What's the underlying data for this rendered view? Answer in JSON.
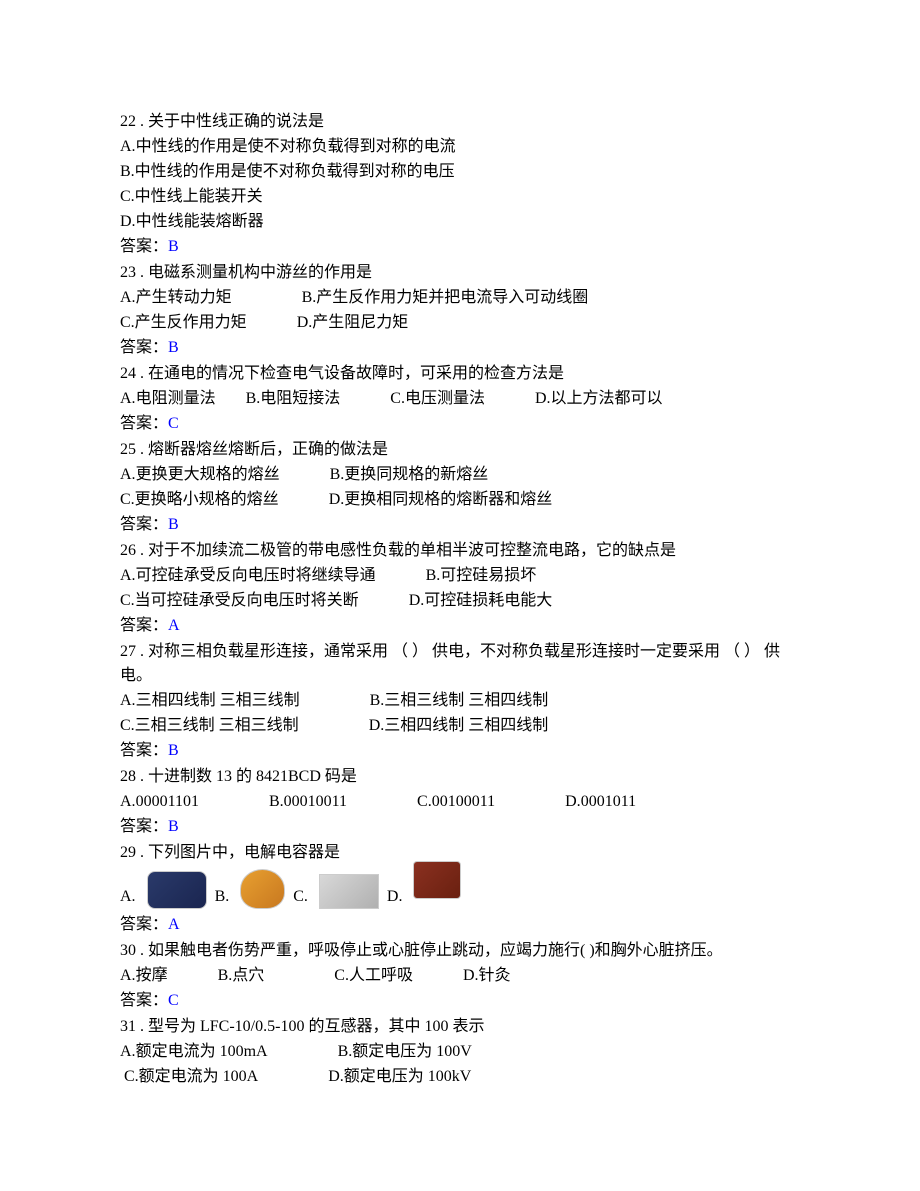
{
  "questions": [
    {
      "number": "22",
      "text": "关于中性线正确的说法是",
      "options": {
        "A": "中性线的作用是使不对称负载得到对称的电流",
        "B": "中性线的作用是使不对称负载得到对称的电压",
        "C": "中性线上能装开关",
        "D": "中性线能装熔断器"
      },
      "answer_label": "答案：",
      "answer": "B"
    },
    {
      "number": "23",
      "text": "电磁系测量机构中游丝的作用是",
      "options": {
        "A": "产生转动力矩",
        "B": "产生反作用力矩并把电流导入可动线圈",
        "C": "产生反作用力矩",
        "D": "产生阻尼力矩"
      },
      "answer_label": "答案：",
      "answer": "B"
    },
    {
      "number": "24",
      "text": "在通电的情况下检查电气设备故障时，可采用的检查方法是",
      "options": {
        "A": "电阻测量法",
        "B": "电阻短接法",
        "C": "电压测量法",
        "D": "以上方法都可以"
      },
      "answer_label": "答案：",
      "answer": "C"
    },
    {
      "number": "25",
      "text": "熔断器熔丝熔断后，正确的做法是",
      "options": {
        "A": "更换更大规格的熔丝",
        "B": "更换同规格的新熔丝",
        "C": "更换略小规格的熔丝",
        "D": "更换相同规格的熔断器和熔丝"
      },
      "answer_label": "答案：",
      "answer": "B"
    },
    {
      "number": "26",
      "text": "对于不加续流二极管的带电感性负载的单相半波可控整流电路，它的缺点是",
      "options": {
        "A": "可控硅承受反向电压时将继续导通",
        "B": "可控硅易损坏",
        "C": "当可控硅承受反向电压时将关断",
        "D": "可控硅损耗电能大"
      },
      "answer_label": "答案：",
      "answer": "A"
    },
    {
      "number": "27",
      "text": "对称三相负载星形连接，通常采用 （ ） 供电，不对称负载星形连接时一定要采用 （ ） 供电。",
      "options": {
        "A": "三相四线制 三相三线制",
        "B": "三相三线制 三相四线制",
        "C": "三相三线制 三相三线制",
        "D": "三相四线制 三相四线制"
      },
      "answer_label": "答案：",
      "answer": "B"
    },
    {
      "number": "28",
      "text": "十进制数 13 的 8421BCD 码是",
      "options": {
        "A": "00001101",
        "B": "00010011",
        "C": "00100011",
        "D": "0001011"
      },
      "answer_label": "答案：",
      "answer": "B"
    },
    {
      "number": "29",
      "text": "下列图片中，电解电容器是",
      "options": {
        "A": "",
        "B": "",
        "C": "",
        "D": ""
      },
      "answer_label": "答案：",
      "answer": "A"
    },
    {
      "number": "30",
      "text": "如果触电者伤势严重，呼吸停止或心脏停止跳动，应竭力施行( )和胸外心脏挤压。",
      "options": {
        "A": "按摩",
        "B": "点穴",
        "C": "人工呼吸",
        "D": "针灸"
      },
      "answer_label": "答案：",
      "answer": "C"
    },
    {
      "number": "31",
      "text": "型号为 LFC-10/0.5-100 的互感器，其中 100 表示",
      "options": {
        "A": "额定电流为 100mA",
        "B": "额定电压为 100V",
        "C": "额定电流为 100A",
        "D": "额定电压为 100kV"
      },
      "answer_label": "答案：",
      "answer": ""
    }
  ],
  "labels": {
    "A": "A.",
    "B": "B.",
    "C": "C.",
    "D": "D."
  },
  "colors": {
    "text": "#000000",
    "answer": "#0000ff",
    "background": "#ffffff"
  },
  "typography": {
    "font_family": "SimSun",
    "font_size_pt": 12,
    "line_height": 1.5
  }
}
